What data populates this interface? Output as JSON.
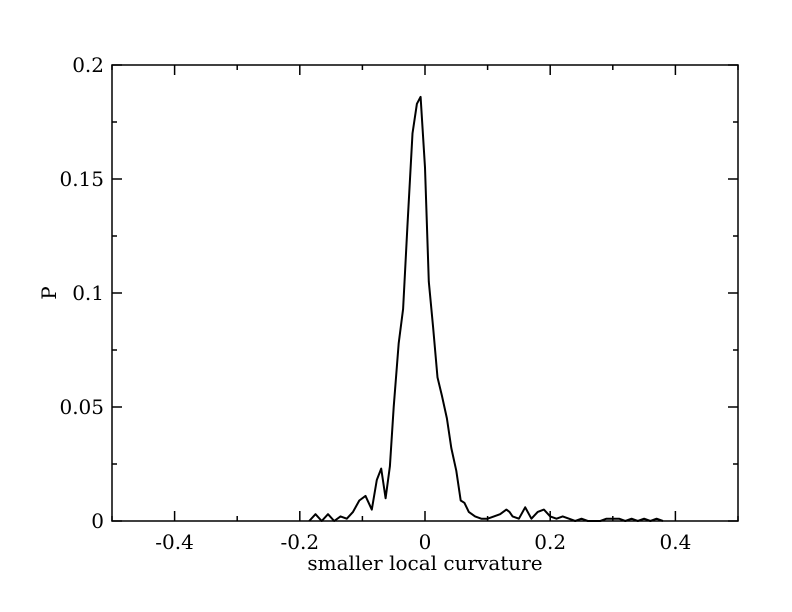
{
  "chart_data": {
    "type": "line",
    "title": "",
    "xlabel": "smaller local curvature",
    "ylabel": "P",
    "xlim": [
      -0.5,
      0.5
    ],
    "ylim": [
      0,
      0.2
    ],
    "grid": false,
    "x_ticks": [
      {
        "value": -0.4,
        "label": "-0.4"
      },
      {
        "value": -0.2,
        "label": "-0.2"
      },
      {
        "value": 0,
        "label": "0"
      },
      {
        "value": 0.2,
        "label": "0.2"
      },
      {
        "value": 0.4,
        "label": "0.4"
      }
    ],
    "y_ticks": [
      {
        "value": 0,
        "label": "0"
      },
      {
        "value": 0.05,
        "label": "0.05"
      },
      {
        "value": 0.1,
        "label": "0.1"
      },
      {
        "value": 0.15,
        "label": "0.15"
      },
      {
        "value": 0.2,
        "label": "0.2"
      }
    ],
    "series": [
      {
        "color": "#000000",
        "x": [
          -0.185,
          -0.175,
          -0.165,
          -0.155,
          -0.145,
          -0.135,
          -0.125,
          -0.115,
          -0.105,
          -0.095,
          -0.085,
          -0.077,
          -0.07,
          -0.063,
          -0.056,
          -0.05,
          -0.042,
          -0.035,
          -0.028,
          -0.02,
          -0.013,
          -0.007,
          0,
          0.006,
          0.013,
          0.02,
          0.027,
          0.035,
          0.042,
          0.05,
          0.057,
          0.063,
          0.07,
          0.08,
          0.09,
          0.1,
          0.11,
          0.12,
          0.13,
          0.135,
          0.14,
          0.15,
          0.16,
          0.17,
          0.18,
          0.19,
          0.2,
          0.21,
          0.22,
          0.23,
          0.24,
          0.25,
          0.26,
          0.27,
          0.28,
          0.29,
          0.3,
          0.31,
          0.32,
          0.33,
          0.34,
          0.35,
          0.36,
          0.37,
          0.38
        ],
        "y": [
          0,
          0.003,
          0,
          0.003,
          0,
          0.002,
          0.001,
          0.004,
          0.009,
          0.011,
          0.005,
          0.018,
          0.023,
          0.01,
          0.024,
          0.05,
          0.078,
          0.093,
          0.13,
          0.17,
          0.183,
          0.186,
          0.155,
          0.105,
          0.085,
          0.063,
          0.055,
          0.045,
          0.032,
          0.022,
          0.009,
          0.008,
          0.004,
          0.002,
          0.001,
          0.001,
          0.002,
          0.003,
          0.005,
          0.004,
          0.002,
          0.001,
          0.006,
          0.001,
          0.004,
          0.005,
          0.002,
          0.001,
          0.002,
          0.001,
          0,
          0.001,
          0,
          0,
          0,
          0.001,
          0.001,
          0.001,
          0,
          0.001,
          0,
          0.001,
          0,
          0.001,
          0
        ]
      }
    ]
  }
}
